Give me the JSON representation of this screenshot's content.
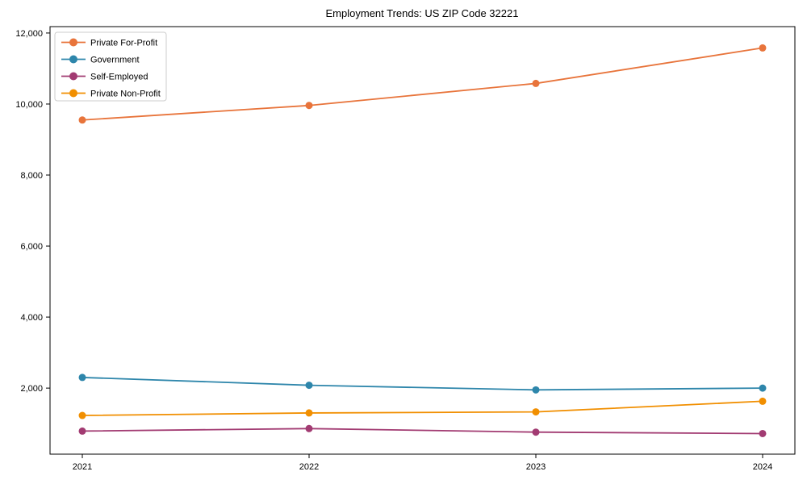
{
  "chart_data": {
    "type": "line",
    "title": "Employment Trends: US ZIP Code 32221",
    "x": [
      "2021",
      "2022",
      "2023",
      "2024"
    ],
    "series": [
      {
        "name": "Private For-Profit",
        "color": "#E8743B",
        "values": [
          9550,
          9960,
          10580,
          11580
        ]
      },
      {
        "name": "Government",
        "color": "#2E86AB",
        "values": [
          2300,
          2080,
          1950,
          2000
        ]
      },
      {
        "name": "Self-Employed",
        "color": "#A23B72",
        "values": [
          790,
          860,
          760,
          720
        ]
      },
      {
        "name": "Private Non-Profit",
        "color": "#F18F01",
        "values": [
          1230,
          1300,
          1330,
          1630
        ]
      }
    ],
    "yticks": [
      2000,
      4000,
      6000,
      8000,
      10000,
      12000
    ],
    "ytick_labels": [
      "2,000",
      "4,000",
      "6,000",
      "8,000",
      "10,000",
      "12,000"
    ],
    "ylim": [
      140,
      12180
    ],
    "xlabel": "",
    "ylabel": "",
    "grid": false,
    "legend_position": "upper-left",
    "marker": "circle",
    "axis_color": "#000000",
    "legend_border_color": "#cccccc",
    "background": "#ffffff"
  }
}
